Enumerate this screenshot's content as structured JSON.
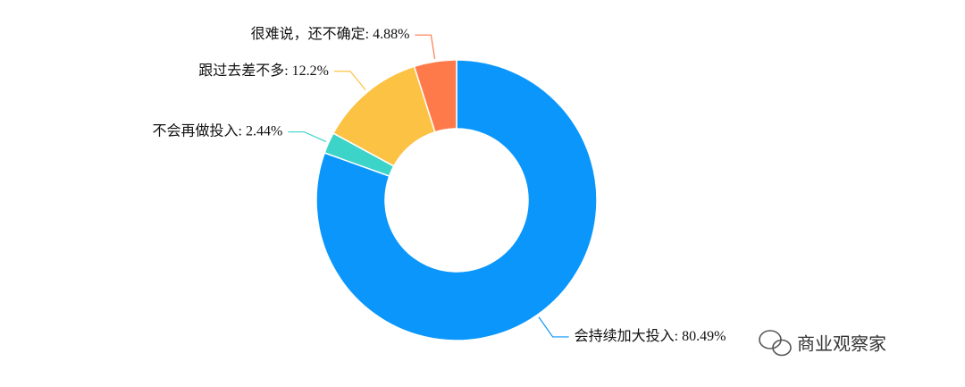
{
  "chart_data": {
    "type": "donut",
    "categories": [
      "会持续加大投入",
      "不会再做投入",
      "跟过去差不多",
      "很难说，还不确定"
    ],
    "values": [
      80.49,
      2.44,
      12.2,
      4.88
    ],
    "value_labels": [
      ": 80.49%",
      ": 2.44%",
      ": 12.2%",
      ": 4.88%"
    ],
    "colors": [
      "#0a96fb",
      "#3cd3c9",
      "#fcc244",
      "#fe7a4b"
    ]
  },
  "watermark": "商业观察家"
}
